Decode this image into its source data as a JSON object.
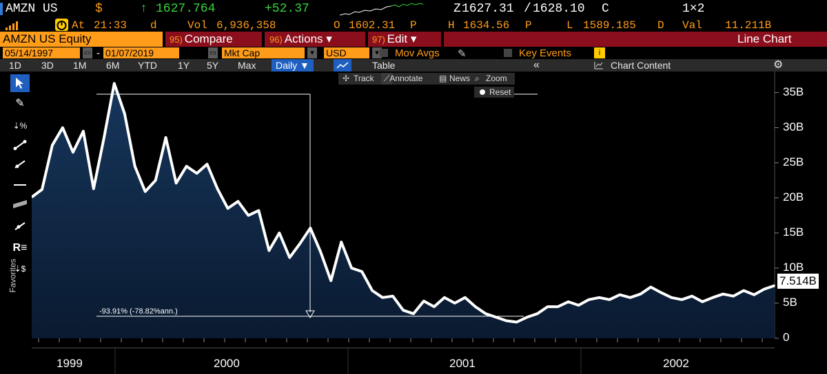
{
  "header": {
    "ticker": "AMZN US",
    "currency_symbol": "$",
    "arrow": "↑",
    "last_price": "1627.764",
    "change": "+52.37",
    "bid_prefix": "Z",
    "bid": "1627.31",
    "ask": "1628.10",
    "ask_suffix": "C",
    "size": "1×2",
    "at_label": "At",
    "time": "21:33",
    "time_suffix": "d",
    "vol_label": "Vol",
    "volume": "6,936,358",
    "open_label": "O",
    "open": "1602.31",
    "open_suffix": "P",
    "high_label": "H",
    "high": "1634.56",
    "high_suffix": "P",
    "low_label": "L",
    "low": "1589.185",
    "low_suffix": "D",
    "val_label": "Val",
    "value": "11.211B"
  },
  "menu_bar": {
    "security": "AMZN US Equity",
    "compare_num": "95)",
    "compare": "Compare",
    "actions_num": "96)",
    "actions": "Actions ▾",
    "edit_num": "97)",
    "edit": "Edit ▾",
    "chart_type": "Line Chart"
  },
  "settings_bar": {
    "start_date": "05/14/1997",
    "end_date": "01/07/2019",
    "field": "Mkt Cap",
    "currency": "USD",
    "mov_avgs": "Mov Avgs",
    "key_events": "Key Events"
  },
  "toolbar": {
    "periods": [
      "1D",
      "3D",
      "1M",
      "6M",
      "YTD",
      "1Y",
      "5Y",
      "Max"
    ],
    "frequency": "Daily ▼",
    "table": "Table",
    "collapse": "«",
    "chart_content": "Chart Content",
    "settings_icon": "gear-icon"
  },
  "float_toolbar": {
    "track": "Track",
    "annotate": "Annotate",
    "news": "News",
    "zoom": "Zoom",
    "reset": "Reset"
  },
  "side_panel": {
    "label": "Favorites"
  },
  "annotation": {
    "text": "-93.91% (-78.82%ann.)"
  },
  "last_value_label": "7.514B",
  "colors": {
    "orange": "#ff9c1a",
    "green": "#35d43a",
    "red_bar": "#8b0e1c",
    "toolbar": "#2b2b2b",
    "accent_blue": "#1f5fbf",
    "area_fill": "#0f2744",
    "line": "#ffffff"
  },
  "chart_data": {
    "type": "area",
    "title": "",
    "xlabel": "",
    "ylabel": "",
    "x_tick_labels": [
      "1999",
      "2000",
      "2001",
      "2002"
    ],
    "y_tick_labels": [
      "0",
      "5B",
      "10B",
      "15B",
      "20B",
      "25B",
      "30B",
      "35B"
    ],
    "ylim": [
      0,
      38
    ],
    "unit": "B",
    "series": [
      {
        "x": [
          "1999-10",
          "1999-10",
          "1999-11",
          "1999-11",
          "1999-11",
          "1999-11",
          "1999-12",
          "1999-12",
          "1999-12",
          "1999-12",
          "2000-01",
          "2000-01",
          "2000-01",
          "2000-02",
          "2000-02",
          "2000-03",
          "2000-03",
          "2000-03",
          "2000-04",
          "2000-04",
          "2000-05",
          "2000-05",
          "2000-05",
          "2000-06",
          "2000-06",
          "2000-07",
          "2000-07",
          "2000-08",
          "2000-08",
          "2000-09",
          "2000-09",
          "2000-10",
          "2000-10",
          "2000-10",
          "2000-11",
          "2000-11",
          "2000-12",
          "2000-12",
          "2001-01",
          "2001-01",
          "2001-02",
          "2001-02",
          "2001-03",
          "2001-03",
          "2001-04",
          "2001-04",
          "2001-05",
          "2001-05",
          "2001-06",
          "2001-06",
          "2001-07",
          "2001-07",
          "2001-08",
          "2001-08",
          "2001-09",
          "2001-09",
          "2001-10",
          "2001-10",
          "2001-11",
          "2001-11",
          "2001-12",
          "2001-12",
          "2002-01",
          "2002-01",
          "2002-02",
          "2002-02",
          "2002-03",
          "2002-03",
          "2002-04",
          "2002-04",
          "2002-05",
          "2002-05",
          "2002-06"
        ],
        "values": [
          20.1,
          21.2,
          27.5,
          30.0,
          26.5,
          29.5,
          21.3,
          28.5,
          36.3,
          32.0,
          24.5,
          20.9,
          22.5,
          28.6,
          22.1,
          24.5,
          23.5,
          24.8,
          21.3,
          18.5,
          19.5,
          17.5,
          18.2,
          12.5,
          15.0,
          11.5,
          13.5,
          15.7,
          12.3,
          8.2,
          13.7,
          10.0,
          9.5,
          6.8,
          5.8,
          6.0,
          4.0,
          3.5,
          5.3,
          4.5,
          5.8,
          5.0,
          5.8,
          4.5,
          3.5,
          3.0,
          2.5,
          2.3,
          3.0,
          3.5,
          4.5,
          4.5,
          5.2,
          4.7,
          5.5,
          5.8,
          5.5,
          6.2,
          5.8,
          6.3,
          7.3,
          6.5,
          5.8,
          5.5,
          6.0,
          5.2,
          5.8,
          6.3,
          6.0,
          6.8,
          6.2,
          7.0,
          7.5
        ]
      }
    ],
    "annotation_value": "-93.91% (-78.82%ann.)",
    "last_value": "7.514B",
    "grid": false
  }
}
